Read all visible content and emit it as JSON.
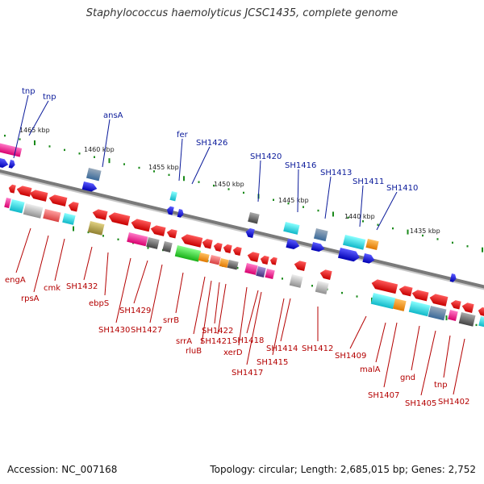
{
  "title": "Staphylococcus haemolyticus JCSC1435, complete genome",
  "accession": "Accession: NC_007168",
  "summary": "Topology: circular; Length: 2,685,015 bp; Genes: 2,752",
  "colors": {
    "backbone": "#7a7a7a",
    "top_label": "#0a1a9a",
    "bottom_label": "#b40000",
    "cds_forward": "#1a1adc",
    "cds_reverse": "#e00000",
    "tick": "#1a8a1a"
  },
  "kbp_marks": [
    "1465 kbp",
    "1460 kbp",
    "1455 kbp",
    "1450 kbp",
    "1445 kbp",
    "1440 kbp",
    "1435 kbp"
  ],
  "top_genes": [
    "tnp",
    "tnp",
    "ansA",
    "fer",
    "SH1426",
    "SH1420",
    "SH1416",
    "SH1413",
    "SH1411",
    "SH1410"
  ],
  "bottom_genes": [
    "engA",
    "rpsA",
    "cmk",
    "SH1432",
    "ebpS",
    "SH1429",
    "SH1430",
    "SH1427",
    "srrB",
    "srrA",
    "rluB",
    "SH1422",
    "SH1421",
    "xerD",
    "SH1418",
    "SH1417",
    "SH1415",
    "SH1414",
    "SH1412",
    "SH1409",
    "malA",
    "SH1407",
    "gnd",
    "SH1405",
    "tnp",
    "SH1402"
  ]
}
